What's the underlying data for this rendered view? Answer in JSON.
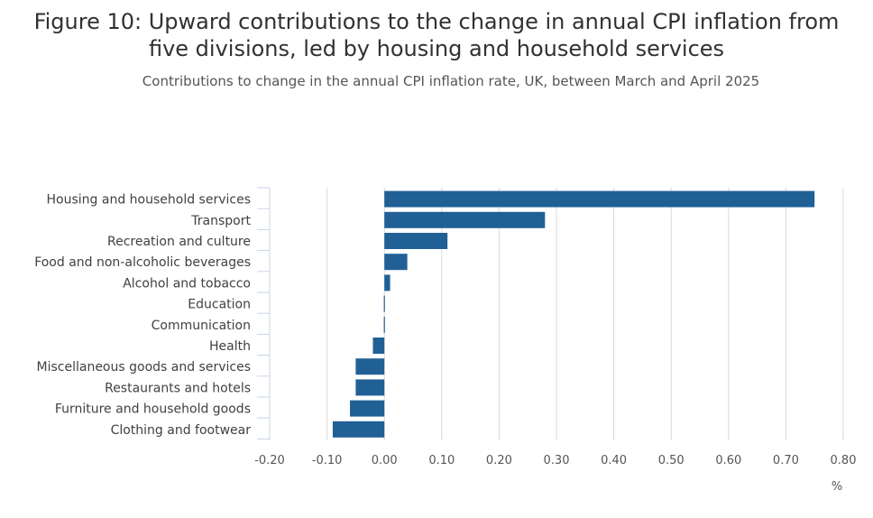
{
  "chart_data": {
    "type": "bar",
    "orientation": "horizontal",
    "title_lines": [
      "Figure 10: Upward contributions to the change in annual CPI inflation from",
      "five divisions, led by housing and household services"
    ],
    "subtitle": "Contributions to change in the annual CPI inflation rate, UK, between March and April 2025",
    "categories": [
      "Housing and household services",
      "Transport",
      "Recreation and culture",
      "Food and non-alcoholic beverages",
      "Alcohol and tobacco",
      "Education",
      "Communication",
      "Health",
      "Miscellaneous goods and services",
      "Restaurants and hotels",
      "Furniture and household goods",
      "Clothing and footwear"
    ],
    "values": [
      0.75,
      0.28,
      0.11,
      0.04,
      0.01,
      0.0,
      0.0,
      -0.02,
      -0.05,
      -0.05,
      -0.06,
      -0.09
    ],
    "xlim": [
      -0.2,
      0.8
    ],
    "xticks": [
      "-0.20",
      "-0.10",
      "0.00",
      "0.10",
      "0.20",
      "0.30",
      "0.40",
      "0.50",
      "0.60",
      "0.70",
      "0.80"
    ],
    "xunit": "%",
    "grid": true,
    "bar_color": "#206095",
    "grid_color": "#d9d9d9"
  }
}
